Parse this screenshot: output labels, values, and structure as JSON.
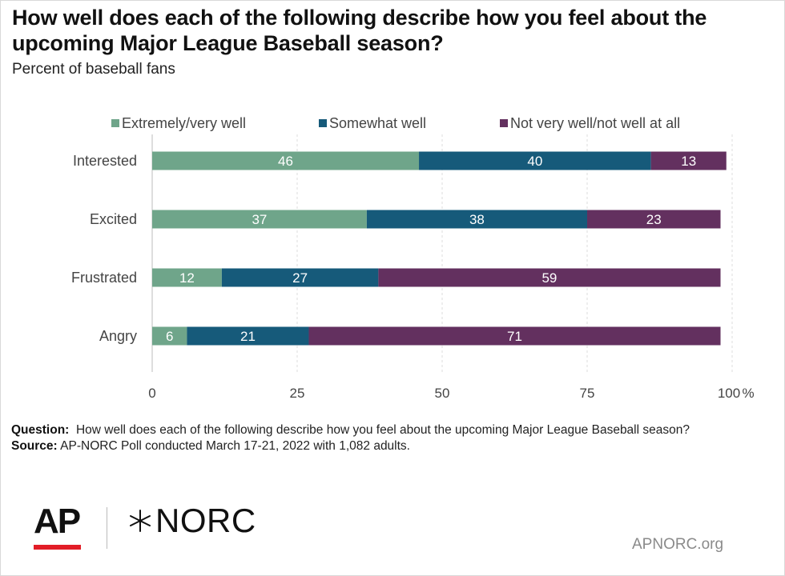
{
  "title": "How well does each of the following describe how you feel about the upcoming Major League Baseball season?",
  "subtitle": "Percent of baseball fans",
  "colors": {
    "extremely_very": "#6fa58a",
    "somewhat": "#165a7a",
    "not_very": "#63305f"
  },
  "chart_data": {
    "type": "bar",
    "orientation": "horizontal",
    "stacked": true,
    "categories": [
      "Interested",
      "Excited",
      "Frustrated",
      "Angry"
    ],
    "series": [
      {
        "name": "Extremely/very well",
        "color": "#6fa58a",
        "values": [
          46,
          37,
          12,
          6
        ]
      },
      {
        "name": "Somewhat well",
        "color": "#165a7a",
        "values": [
          40,
          38,
          27,
          21
        ]
      },
      {
        "name": "Not very well/not well at all",
        "color": "#63305f",
        "values": [
          13,
          23,
          59,
          71
        ]
      }
    ],
    "xlim": [
      0,
      100
    ],
    "xticks": [
      "0",
      "25",
      "50",
      "75",
      "100"
    ],
    "xunit": "%",
    "grid": true,
    "legend_position": "top"
  },
  "note": {
    "question_label": "Question:",
    "question_text": "How well does each of the following describe how you feel about the upcoming Major League Baseball season?",
    "source_label": "Source:",
    "source_text": "AP-NORC Poll conducted March 17-21, 2022 with 1,082 adults."
  },
  "logos": {
    "ap": "AP",
    "norc": "NORC",
    "site": "APNORC.org"
  }
}
